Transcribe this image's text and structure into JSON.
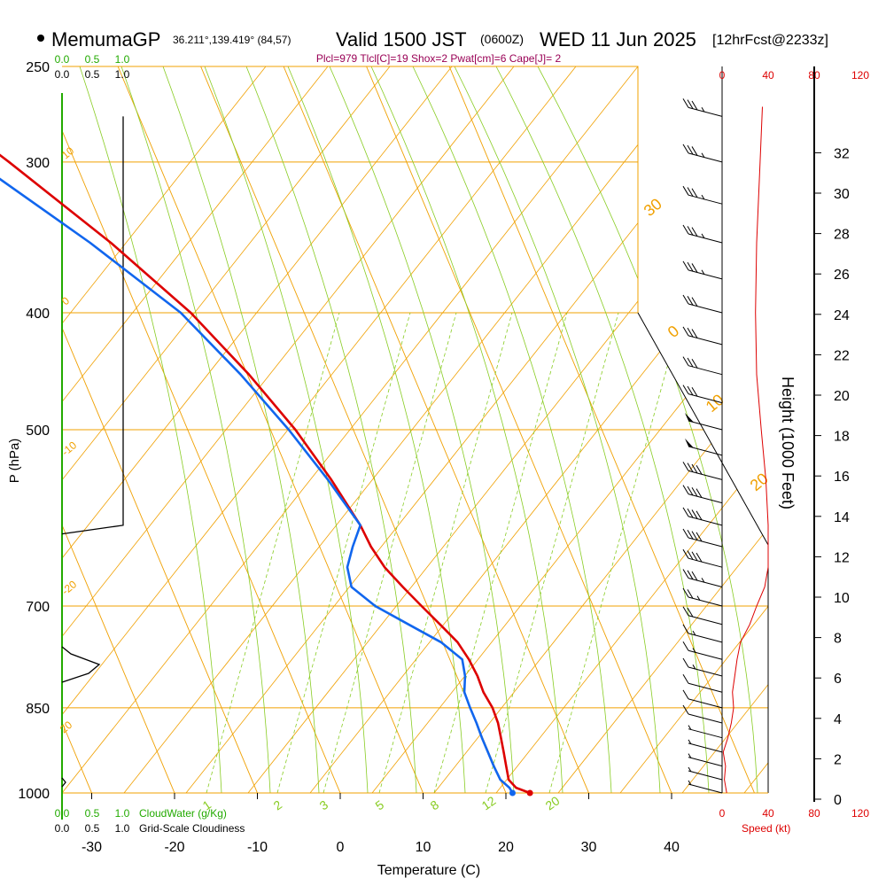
{
  "header": {
    "site_name": "MemumaGP",
    "coords": "36.211°,139.419° (84,57)",
    "valid": "Valid 1500 JST",
    "utc": "(0600Z)",
    "date": "WED 11 Jun 2025",
    "forecast": "[12hrFcst@2233z]"
  },
  "indices": "Plcl=979 Tlcl[C]=19 Shox=2 Pwat[cm]=6 Cape[J]= 2",
  "colors": {
    "temp": "#dd0000",
    "dewpoint": "#1166ee",
    "isotherm": "#f0a000",
    "mixing": "#88cc22",
    "speed": "#dd0000",
    "cloud": "#22aa00",
    "indices": "#990055"
  },
  "chart_data": {
    "type": "line",
    "title": "Skew-T sounding",
    "xlabel": "Temperature (C)",
    "ylabel": "P (hPa)",
    "right_axis_label": "Height (1000 Feet)",
    "x_ticks": [
      "-30",
      "-20",
      "-10",
      "0",
      "10",
      "20",
      "30",
      "40"
    ],
    "pressure_ticks": [
      "250",
      "300",
      "400",
      "500",
      "700",
      "850",
      "1000"
    ],
    "height_ticks": [
      "0",
      "2",
      "4",
      "6",
      "8",
      "10",
      "12",
      "14",
      "16",
      "18",
      "20",
      "22",
      "24",
      "26",
      "28",
      "30",
      "32"
    ],
    "cloud_water_label": "CloudWater (g/Kg)",
    "cloud_water_ticks": [
      "0.0",
      "0.5",
      "1.0"
    ],
    "cloudiness_label": "Grid-Scale Cloudiness",
    "cloudiness_ticks": [
      "0.0",
      "0.5",
      "1.0"
    ],
    "speed_label": "Speed (kt)",
    "speed_ticks": [
      "0",
      "40",
      "80",
      "120"
    ],
    "isotherm_labels": [
      "-20",
      "-10",
      "0",
      "10",
      "20",
      "30",
      "0",
      "10",
      "20",
      "30"
    ],
    "mixing_ratio_labels": [
      "1",
      "2",
      "3",
      "5",
      "8",
      "12",
      "20"
    ],
    "series": [
      {
        "name": "Temperature",
        "points": [
          {
            "p": 1000,
            "t": 22.9
          },
          {
            "p": 990,
            "t": 21.5
          },
          {
            "p": 975,
            "t": 21.0
          },
          {
            "p": 950,
            "t": 21.4
          },
          {
            "p": 925,
            "t": 21.8
          },
          {
            "p": 900,
            "t": 22.2
          },
          {
            "p": 875,
            "t": 22.6
          },
          {
            "p": 850,
            "t": 22.7
          },
          {
            "p": 825,
            "t": 22.4
          },
          {
            "p": 800,
            "t": 22.5
          },
          {
            "p": 775,
            "t": 22.3
          },
          {
            "p": 750,
            "t": 21.8
          },
          {
            "p": 725,
            "t": 20.6
          },
          {
            "p": 700,
            "t": 19.3
          },
          {
            "p": 675,
            "t": 18.0
          },
          {
            "p": 650,
            "t": 16.8
          },
          {
            "p": 625,
            "t": 16.2
          },
          {
            "p": 600,
            "t": 16.0
          },
          {
            "p": 550,
            "t": 14.8
          },
          {
            "p": 500,
            "t": 13.0
          },
          {
            "p": 450,
            "t": 10.2
          },
          {
            "p": 400,
            "t": 6.3
          },
          {
            "p": 350,
            "t": 0.2
          },
          {
            "p": 300,
            "t": -8.0
          },
          {
            "p": 270,
            "t": -14.0
          }
        ]
      },
      {
        "name": "Dewpoint",
        "points": [
          {
            "p": 1000,
            "t": 20.8
          },
          {
            "p": 990,
            "t": 20.7
          },
          {
            "p": 975,
            "t": 20.0
          },
          {
            "p": 950,
            "t": 19.9
          },
          {
            "p": 925,
            "t": 19.9
          },
          {
            "p": 900,
            "t": 19.9
          },
          {
            "p": 875,
            "t": 20.0
          },
          {
            "p": 850,
            "t": 20.0
          },
          {
            "p": 825,
            "t": 20.1
          },
          {
            "p": 800,
            "t": 21.0
          },
          {
            "p": 775,
            "t": 21.5
          },
          {
            "p": 750,
            "t": 19.8
          },
          {
            "p": 725,
            "t": 16.8
          },
          {
            "p": 700,
            "t": 13.7
          },
          {
            "p": 675,
            "t": 11.8
          },
          {
            "p": 650,
            "t": 12.3
          },
          {
            "p": 625,
            "t": 14.0
          },
          {
            "p": 600,
            "t": 16.0
          },
          {
            "p": 550,
            "t": 14.4
          },
          {
            "p": 500,
            "t": 12.2
          },
          {
            "p": 450,
            "t": 9.2
          },
          {
            "p": 400,
            "t": 5.1
          },
          {
            "p": 350,
            "t": -2.3
          },
          {
            "p": 300,
            "t": -12.0
          },
          {
            "p": 270,
            "t": -19.5
          }
        ]
      }
    ],
    "wind_speed_profile_kt": [
      {
        "p": 1000,
        "v": 4
      },
      {
        "p": 975,
        "v": 2
      },
      {
        "p": 950,
        "v": 3
      },
      {
        "p": 925,
        "v": 1
      },
      {
        "p": 900,
        "v": 5
      },
      {
        "p": 875,
        "v": 8
      },
      {
        "p": 850,
        "v": 10
      },
      {
        "p": 825,
        "v": 9
      },
      {
        "p": 800,
        "v": 11
      },
      {
        "p": 775,
        "v": 13
      },
      {
        "p": 750,
        "v": 16
      },
      {
        "p": 725,
        "v": 24
      },
      {
        "p": 700,
        "v": 30
      },
      {
        "p": 675,
        "v": 37
      },
      {
        "p": 650,
        "v": 40
      },
      {
        "p": 600,
        "v": 40
      },
      {
        "p": 550,
        "v": 38
      },
      {
        "p": 500,
        "v": 34
      },
      {
        "p": 450,
        "v": 30
      },
      {
        "p": 400,
        "v": 29
      },
      {
        "p": 350,
        "v": 30
      },
      {
        "p": 300,
        "v": 33
      },
      {
        "p": 270,
        "v": 35
      }
    ],
    "wind_barbs": [
      {
        "p": 1000,
        "kt": 5
      },
      {
        "p": 975,
        "kt": 5
      },
      {
        "p": 950,
        "kt": 5
      },
      {
        "p": 925,
        "kt": 5
      },
      {
        "p": 900,
        "kt": 5
      },
      {
        "p": 875,
        "kt": 10
      },
      {
        "p": 850,
        "kt": 10
      },
      {
        "p": 825,
        "kt": 10
      },
      {
        "p": 800,
        "kt": 15
      },
      {
        "p": 775,
        "kt": 15
      },
      {
        "p": 750,
        "kt": 15
      },
      {
        "p": 725,
        "kt": 20
      },
      {
        "p": 700,
        "kt": 25
      },
      {
        "p": 675,
        "kt": 35
      },
      {
        "p": 650,
        "kt": 40
      },
      {
        "p": 625,
        "kt": 40
      },
      {
        "p": 600,
        "kt": 40
      },
      {
        "p": 575,
        "kt": 40
      },
      {
        "p": 550,
        "kt": 40
      },
      {
        "p": 525,
        "kt": 50
      },
      {
        "p": 500,
        "kt": 50
      },
      {
        "p": 475,
        "kt": 30
      },
      {
        "p": 450,
        "kt": 30
      },
      {
        "p": 425,
        "kt": 30
      },
      {
        "p": 400,
        "kt": 30
      },
      {
        "p": 375,
        "kt": 35
      },
      {
        "p": 350,
        "kt": 35
      },
      {
        "p": 325,
        "kt": 35
      },
      {
        "p": 300,
        "kt": 35
      },
      {
        "p": 275,
        "kt": 35
      }
    ],
    "grid_scale_cloudiness": [
      {
        "p": 610,
        "v": 0.0
      },
      {
        "p": 600,
        "v": 1.0
      },
      {
        "p": 275,
        "v": 1.0
      }
    ]
  }
}
